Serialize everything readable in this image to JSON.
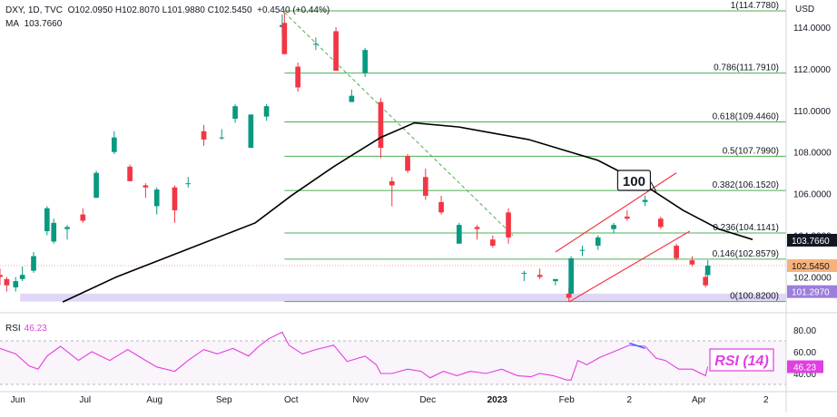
{
  "header": {
    "symbol": "DXY",
    "timeframe": "1D",
    "source": "TVC",
    "ohlc": "O102.0950 H102.8070 L101.9880 C102.5450",
    "change": "+0.4540 (+0.44%)",
    "ma_label": "MA",
    "ma_value": "103.7660"
  },
  "price_axis": {
    "unit": "USD",
    "ticks": [
      "114.0000",
      "112.0000",
      "110.0000",
      "108.0000",
      "106.0000",
      "104.0000",
      "102.0000"
    ],
    "badges": {
      "ma": "103.7660",
      "close": "102.5450",
      "support": "101.2970"
    }
  },
  "rsi_axis": {
    "ticks": [
      "80.00",
      "60.00",
      "40.00"
    ],
    "badge": "46.23"
  },
  "rsi_legend": {
    "label": "RSI",
    "value": "46.23"
  },
  "annotations": {
    "ma_callout": "100",
    "rsi_callout": "RSI (14)"
  },
  "time_axis": [
    "Jun",
    "Jul",
    "Aug",
    "Sep",
    "Oct",
    "Nov",
    "Dec",
    "2023",
    "Feb",
    "2",
    "Apr",
    "2"
  ],
  "colors": {
    "up": "#089981",
    "down": "#f23645",
    "ma": "#000000",
    "fib": "#4caf50",
    "channel": "#f23645",
    "rsi": "#e040e0",
    "support_zone": "#d8ccf2",
    "trendline": "#4caf50",
    "rsi_divergence": "#2962ff"
  },
  "chart_data": [
    {
      "type": "candlestick",
      "title": "DXY, 1D, TVC",
      "xlabel": "",
      "ylabel": "",
      "ylim": [
        100.5,
        115.3
      ],
      "grid": false,
      "x_range": [
        "2022-05-24",
        "2023-05-10"
      ],
      "series": [
        {
          "name": "DXY",
          "ohlc_points": [
            [
              "2022-05-24",
              102.1,
              102.4,
              101.6,
              102.0
            ],
            [
              "2022-05-27",
              101.9,
              102.0,
              101.3,
              101.6
            ],
            [
              "2022-05-31",
              101.5,
              102.0,
              101.3,
              101.8
            ],
            [
              "2022-06-03",
              101.9,
              102.5,
              101.8,
              102.1
            ],
            [
              "2022-06-08",
              102.3,
              103.2,
              102.2,
              103.0
            ],
            [
              "2022-06-14",
              104.2,
              105.4,
              104.0,
              105.3
            ],
            [
              "2022-06-17",
              103.7,
              104.8,
              103.6,
              104.6
            ],
            [
              "2022-06-23",
              104.3,
              104.5,
              103.8,
              104.4
            ],
            [
              "2022-06-30",
              105.0,
              105.3,
              104.6,
              104.7
            ],
            [
              "2022-07-06",
              105.8,
              107.1,
              105.8,
              107.0
            ],
            [
              "2022-07-14",
              108.0,
              109.0,
              107.9,
              108.7
            ],
            [
              "2022-07-21",
              107.3,
              107.4,
              106.6,
              106.6
            ],
            [
              "2022-07-28",
              106.4,
              106.5,
              105.8,
              106.3
            ],
            [
              "2022-08-02",
              105.4,
              106.3,
              105.0,
              106.2
            ],
            [
              "2022-08-10",
              106.3,
              106.4,
              104.6,
              105.2
            ],
            [
              "2022-08-16",
              106.5,
              106.8,
              106.3,
              106.5
            ],
            [
              "2022-08-23",
              109.0,
              109.3,
              108.3,
              108.6
            ],
            [
              "2022-08-31",
              108.7,
              109.1,
              108.6,
              108.7
            ],
            [
              "2022-09-06",
              109.6,
              110.3,
              109.4,
              110.2
            ],
            [
              "2022-09-13",
              108.2,
              109.8,
              108.2,
              109.8
            ],
            [
              "2022-09-20",
              109.7,
              110.3,
              109.5,
              110.2
            ],
            [
              "2022-09-27",
              114.0,
              114.6,
              113.6,
              114.1
            ],
            [
              "2022-09-28",
              114.2,
              114.7,
              112.7,
              112.7
            ],
            [
              "2022-10-04",
              112.1,
              112.3,
              110.9,
              111.1
            ],
            [
              "2022-10-12",
              113.2,
              113.5,
              112.9,
              113.2
            ],
            [
              "2022-10-21",
              113.8,
              114.0,
              111.9,
              111.9
            ],
            [
              "2022-10-28",
              110.4,
              111.0,
              110.4,
              110.7
            ],
            [
              "2022-11-03",
              111.8,
              113.0,
              111.6,
              112.9
            ],
            [
              "2022-11-10",
              110.4,
              110.6,
              107.7,
              108.2
            ],
            [
              "2022-11-15",
              106.6,
              106.8,
              105.4,
              106.4
            ],
            [
              "2022-11-22",
              107.8,
              107.9,
              107.0,
              107.1
            ],
            [
              "2022-11-30",
              106.8,
              107.2,
              105.7,
              105.9
            ],
            [
              "2022-12-07",
              105.6,
              105.9,
              105.0,
              105.1
            ],
            [
              "2022-12-15",
              103.6,
              104.6,
              103.6,
              104.5
            ],
            [
              "2022-12-23",
              104.4,
              104.5,
              103.8,
              104.3
            ],
            [
              "2022-12-30",
              103.8,
              104.0,
              103.4,
              103.5
            ],
            [
              "2023-01-06",
              105.1,
              105.3,
              103.6,
              103.9
            ],
            [
              "2023-01-13",
              102.2,
              102.3,
              101.8,
              102.2
            ],
            [
              "2023-01-20",
              102.1,
              102.4,
              101.9,
              102.0
            ],
            [
              "2023-01-27",
              101.8,
              101.9,
              101.6,
              101.9
            ],
            [
              "2023-02-02",
              101.2,
              101.5,
              100.8,
              101.0
            ],
            [
              "2023-02-03",
              101.2,
              103.0,
              101.2,
              102.9
            ],
            [
              "2023-02-08",
              103.3,
              103.5,
              103.0,
              103.3
            ],
            [
              "2023-02-15",
              103.5,
              104.0,
              103.3,
              103.9
            ],
            [
              "2023-02-22",
              104.3,
              104.6,
              104.1,
              104.5
            ],
            [
              "2023-02-28",
              104.9,
              105.2,
              104.7,
              104.8
            ],
            [
              "2023-03-08",
              105.6,
              105.9,
              105.4,
              105.7
            ],
            [
              "2023-03-15",
              104.8,
              104.9,
              104.3,
              104.4
            ],
            [
              "2023-03-22",
              103.5,
              103.6,
              102.8,
              102.9
            ],
            [
              "2023-03-29",
              102.8,
              103.0,
              102.5,
              102.6
            ],
            [
              "2023-04-04",
              102.0,
              102.2,
              101.5,
              101.6
            ],
            [
              "2023-04-05",
              102.095,
              102.807,
              101.988,
              102.545
            ]
          ]
        },
        {
          "name": "MA 100",
          "points": [
            [
              "2022-06-21",
              100.8
            ],
            [
              "2022-07-15",
              102.0
            ],
            [
              "2022-08-15",
              103.3
            ],
            [
              "2022-09-15",
              104.6
            ],
            [
              "2022-10-01",
              105.9
            ],
            [
              "2022-10-20",
              107.3
            ],
            [
              "2022-11-10",
              108.7
            ],
            [
              "2022-11-25",
              109.4
            ],
            [
              "2022-12-15",
              109.2
            ],
            [
              "2023-01-15",
              108.6
            ],
            [
              "2023-02-15",
              107.6
            ],
            [
              "2023-03-05",
              106.6
            ],
            [
              "2023-03-25",
              105.2
            ],
            [
              "2023-04-10",
              104.3
            ],
            [
              "2023-04-25",
              103.8
            ]
          ]
        }
      ],
      "fibonacci_levels": [
        {
          "ratio": "1",
          "value": 114.778,
          "label": "1(114.7780)"
        },
        {
          "ratio": "0.786",
          "value": 111.791,
          "label": "0.786(111.7910)"
        },
        {
          "ratio": "0.618",
          "value": 109.446,
          "label": "0.618(109.4460)"
        },
        {
          "ratio": "0.5",
          "value": 107.799,
          "label": "0.5(107.7990)"
        },
        {
          "ratio": "0.382",
          "value": 106.152,
          "label": "0.382(106.1520)"
        },
        {
          "ratio": "0.236",
          "value": 104.1141,
          "label": "0.236(104.1141)"
        },
        {
          "ratio": "0.146",
          "value": 102.8579,
          "label": "0.146(102.8579)"
        },
        {
          "ratio": "0",
          "value": 100.82,
          "label": "0(100.8200)"
        }
      ],
      "support_zone": [
        100.82,
        101.2
      ],
      "trendline": [
        [
          "2022-09-28",
          114.7
        ],
        [
          "2023-01-08",
          104.0
        ]
      ],
      "channel": {
        "upper": [
          [
            "2023-01-27",
            103.2
          ],
          [
            "2023-03-22",
            107.0
          ]
        ],
        "lower": [
          [
            "2023-02-02",
            100.8
          ],
          [
            "2023-03-28",
            104.2
          ]
        ]
      }
    },
    {
      "type": "line",
      "title": "RSI",
      "ylim": [
        25,
        90
      ],
      "hlines": [
        70,
        30
      ],
      "series": [
        {
          "name": "RSI",
          "points": [
            [
              "2022-05-24",
              63
            ],
            [
              "2022-05-31",
              58
            ],
            [
              "2022-06-06",
              47
            ],
            [
              "2022-06-10",
              44
            ],
            [
              "2022-06-14",
              56
            ],
            [
              "2022-06-20",
              65
            ],
            [
              "2022-06-28",
              52
            ],
            [
              "2022-07-04",
              60
            ],
            [
              "2022-07-12",
              52
            ],
            [
              "2022-07-20",
              62
            ],
            [
              "2022-07-28",
              52
            ],
            [
              "2022-08-02",
              46
            ],
            [
              "2022-08-10",
              42
            ],
            [
              "2022-08-16",
              52
            ],
            [
              "2022-08-23",
              62
            ],
            [
              "2022-08-29",
              58
            ],
            [
              "2022-09-05",
              63
            ],
            [
              "2022-09-12",
              56
            ],
            [
              "2022-09-16",
              64
            ],
            [
              "2022-09-21",
              72
            ],
            [
              "2022-09-27",
              78
            ],
            [
              "2022-09-30",
              66
            ],
            [
              "2022-10-06",
              58
            ],
            [
              "2022-10-12",
              62
            ],
            [
              "2022-10-20",
              66
            ],
            [
              "2022-10-26",
              51
            ],
            [
              "2022-11-03",
              56
            ],
            [
              "2022-11-08",
              48
            ],
            [
              "2022-11-10",
              40
            ],
            [
              "2022-11-15",
              40
            ],
            [
              "2022-11-22",
              44
            ],
            [
              "2022-11-28",
              42
            ],
            [
              "2022-12-02",
              36
            ],
            [
              "2022-12-08",
              42
            ],
            [
              "2022-12-14",
              38
            ],
            [
              "2022-12-20",
              42
            ],
            [
              "2022-12-27",
              40
            ],
            [
              "2023-01-03",
              44
            ],
            [
              "2023-01-10",
              38
            ],
            [
              "2023-01-16",
              37
            ],
            [
              "2023-01-20",
              40
            ],
            [
              "2023-01-26",
              38
            ],
            [
              "2023-02-01",
              34
            ],
            [
              "2023-02-03",
              34
            ],
            [
              "2023-02-06",
              52
            ],
            [
              "2023-02-10",
              48
            ],
            [
              "2023-02-16",
              55
            ],
            [
              "2023-02-22",
              60
            ],
            [
              "2023-03-01",
              66
            ],
            [
              "2023-03-08",
              65
            ],
            [
              "2023-03-13",
              54
            ],
            [
              "2023-03-17",
              52
            ],
            [
              "2023-03-23",
              44
            ],
            [
              "2023-03-29",
              44
            ],
            [
              "2023-04-04",
              38
            ],
            [
              "2023-04-05",
              46.23
            ]
          ]
        }
      ],
      "divergence_line": [
        [
          "2023-03-01",
          68
        ],
        [
          "2023-03-08",
          63
        ]
      ]
    }
  ]
}
